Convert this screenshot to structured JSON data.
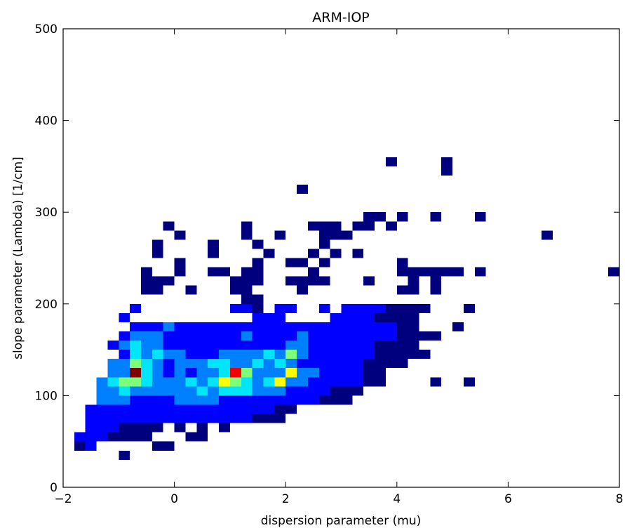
{
  "chart_data": {
    "type": "heatmap",
    "title": "ARM-IOP",
    "xlabel": "dispersion parameter (mu)",
    "ylabel": "slope parameter (Lambda) [1/cm]",
    "xlim": [
      -2,
      8
    ],
    "ylim": [
      0,
      500
    ],
    "xticks": [
      -2,
      0,
      2,
      4,
      6,
      8
    ],
    "yticks": [
      0,
      100,
      200,
      300,
      400,
      500
    ],
    "grid": false,
    "colormap": "jet",
    "bin_size": {
      "x": 0.2,
      "y": 10
    },
    "x": [
      -1.7,
      -1.5,
      -0.9,
      -0.3,
      -0.1,
      0.3,
      0.5,
      -1.7,
      -1.5,
      -1.3,
      -1.1,
      -0.9,
      -0.7,
      -0.5,
      -1.5,
      -1.3,
      -1.1,
      -0.9,
      -0.7,
      -0.5,
      -0.3,
      0.1,
      0.5,
      0.9,
      1.1,
      1.3,
      1.5,
      1.7,
      -1.5,
      -1.3,
      -1.1,
      -0.9,
      -0.7,
      -0.5,
      -0.3,
      -0.1,
      0.1,
      0.3,
      0.5,
      0.7,
      0.9,
      1.1,
      1.3,
      1.5,
      1.7,
      1.9,
      -1.5,
      -1.3,
      -1.1,
      -0.9,
      -0.7,
      -0.5,
      -0.3,
      -0.1,
      0.1,
      0.3,
      0.5,
      0.7,
      0.9,
      1.1,
      1.3,
      1.5,
      1.7,
      1.9,
      2.1,
      -1.3,
      -1.1,
      -0.9,
      -0.7,
      -0.5,
      -0.3,
      -0.1,
      0.1,
      0.3,
      0.5,
      0.7,
      0.9,
      1.1,
      1.3,
      1.5,
      1.7,
      1.9,
      2.1,
      2.3,
      2.5,
      2.7,
      2.9,
      3.1,
      -1.3,
      -1.1,
      -0.9,
      -0.7,
      -0.5,
      -0.3,
      -0.1,
      0.1,
      0.3,
      0.5,
      0.7,
      0.9,
      1.1,
      1.3,
      1.5,
      1.7,
      1.9,
      2.1,
      2.3,
      2.5,
      2.7,
      2.9,
      3.1,
      3.3,
      -1.3,
      -1.1,
      -0.9,
      -0.7,
      -0.5,
      -0.3,
      -0.1,
      0.1,
      0.3,
      0.5,
      0.7,
      0.9,
      1.1,
      1.3,
      1.5,
      1.7,
      1.9,
      2.1,
      2.3,
      2.5,
      2.7,
      2.9,
      3.1,
      3.3,
      3.5,
      3.7,
      4.7,
      5.3,
      -1.1,
      -0.9,
      -0.7,
      -0.5,
      -0.3,
      -0.1,
      0.1,
      0.3,
      0.5,
      0.7,
      0.9,
      1.1,
      1.3,
      1.5,
      1.7,
      1.9,
      2.1,
      2.3,
      2.5,
      2.7,
      2.9,
      3.1,
      3.3,
      3.5,
      3.7,
      -1.1,
      -0.9,
      -0.7,
      -0.5,
      -0.3,
      -0.1,
      0.1,
      0.3,
      0.5,
      0.7,
      0.9,
      1.1,
      1.3,
      1.5,
      1.7,
      1.9,
      2.1,
      2.3,
      2.5,
      2.7,
      2.9,
      3.1,
      3.3,
      3.5,
      3.7,
      3.9,
      4.1,
      -0.9,
      -0.7,
      -0.5,
      -0.3,
      -0.1,
      0.1,
      0.3,
      0.5,
      0.7,
      0.9,
      1.1,
      1.3,
      1.5,
      1.7,
      1.9,
      2.1,
      2.3,
      2.5,
      2.7,
      2.9,
      3.1,
      3.3,
      3.5,
      3.7,
      3.9,
      4.1,
      4.3,
      4.5,
      -1.1,
      -0.9,
      -0.7,
      -0.5,
      -0.3,
      -0.1,
      0.1,
      0.3,
      0.5,
      0.7,
      0.9,
      1.1,
      1.3,
      1.5,
      1.7,
      1.9,
      2.1,
      2.3,
      2.5,
      2.7,
      2.9,
      3.1,
      3.3,
      3.5,
      3.7,
      3.9,
      4.1,
      4.3,
      -0.9,
      -0.7,
      -0.5,
      -0.3,
      -0.1,
      0.1,
      0.3,
      0.5,
      0.7,
      0.9,
      1.1,
      1.3,
      1.5,
      1.7,
      1.9,
      2.1,
      2.3,
      2.5,
      2.7,
      2.9,
      3.1,
      3.3,
      3.5,
      3.7,
      3.9,
      4.1,
      4.3,
      4.5,
      4.7,
      7.9,
      -0.7,
      -0.5,
      -0.3,
      -0.1,
      0.1,
      0.3,
      0.5,
      0.7,
      0.9,
      1.1,
      1.3,
      1.5,
      1.7,
      1.9,
      2.1,
      2.3,
      2.5,
      2.7,
      2.9,
      3.1,
      3.3,
      3.5,
      3.7,
      3.9,
      4.1,
      4.3,
      5.1,
      -0.9,
      1.5,
      1.7,
      1.9,
      2.9,
      3.1,
      3.3,
      3.5,
      3.7,
      3.9,
      4.1,
      4.3,
      -0.7,
      1.1,
      1.3,
      1.5,
      1.9,
      2.1,
      2.7,
      3.1,
      3.3,
      3.5,
      3.7,
      3.9,
      4.1,
      4.3,
      4.5,
      5.3,
      1.3,
      1.5,
      6.7,
      -0.5,
      -0.3,
      0.3,
      1.1,
      1.3,
      2.3,
      4.1,
      4.3,
      4.7,
      -0.5,
      -0.3,
      -0.1,
      1.1,
      1.3,
      1.5,
      2.1,
      2.3,
      2.5,
      2.7,
      3.5,
      4.3,
      4.7,
      -0.5,
      0.1,
      0.7,
      0.9,
      1.3,
      1.5,
      2.5,
      4.1,
      4.3,
      4.5,
      4.7,
      4.9,
      5.1,
      5.5,
      0.1,
      1.5,
      2.1,
      2.3,
      2.7,
      4.1,
      -0.3,
      0.7,
      1.7,
      2.5,
      2.9,
      3.3,
      -0.3,
      0.7,
      1.5,
      2.7,
      0.1,
      1.3,
      1.9,
      2.7,
      2.9,
      3.1,
      -0.1,
      1.3,
      2.5,
      2.7,
      2.9,
      3.3,
      3.5,
      3.9,
      3.5,
      3.7,
      4.1,
      4.7,
      5.5,
      2.3,
      4.9,
      3.9,
      4.9
    ],
    "y": [
      45,
      45,
      35,
      45,
      45,
      55,
      55,
      55,
      55,
      55,
      55,
      55,
      55,
      55,
      65,
      65,
      65,
      65,
      65,
      65,
      65,
      65,
      65,
      65,
      75,
      75,
      75,
      75,
      75,
      75,
      75,
      75,
      75,
      75,
      75,
      75,
      75,
      75,
      75,
      75,
      75,
      75,
      75,
      75,
      75,
      75,
      85,
      85,
      85,
      85,
      85,
      85,
      85,
      85,
      85,
      85,
      85,
      85,
      85,
      85,
      85,
      85,
      85,
      85,
      85,
      95,
      95,
      95,
      95,
      95,
      95,
      95,
      95,
      95,
      95,
      95,
      95,
      95,
      95,
      95,
      95,
      95,
      95,
      95,
      95,
      95,
      95,
      95,
      105,
      105,
      105,
      105,
      105,
      105,
      105,
      105,
      105,
      105,
      105,
      105,
      105,
      105,
      105,
      105,
      105,
      105,
      105,
      105,
      105,
      105,
      105,
      105,
      115,
      115,
      115,
      115,
      115,
      115,
      115,
      115,
      115,
      115,
      115,
      115,
      115,
      115,
      115,
      115,
      115,
      115,
      115,
      115,
      115,
      115,
      115,
      115,
      115,
      115,
      115,
      115,
      125,
      125,
      125,
      125,
      125,
      125,
      125,
      125,
      125,
      125,
      125,
      125,
      125,
      125,
      125,
      125,
      125,
      125,
      125,
      125,
      125,
      125,
      125,
      125,
      125,
      135,
      135,
      135,
      135,
      135,
      135,
      135,
      135,
      135,
      135,
      135,
      135,
      135,
      135,
      135,
      135,
      135,
      135,
      135,
      135,
      135,
      135,
      135,
      135,
      135,
      135,
      135,
      145,
      145,
      145,
      145,
      145,
      145,
      145,
      145,
      145,
      145,
      145,
      145,
      145,
      145,
      145,
      145,
      145,
      145,
      145,
      145,
      145,
      145,
      145,
      145,
      145,
      145,
      145,
      145,
      155,
      155,
      155,
      155,
      155,
      155,
      155,
      155,
      155,
      155,
      155,
      155,
      155,
      155,
      155,
      155,
      155,
      155,
      155,
      155,
      155,
      155,
      155,
      155,
      155,
      155,
      155,
      155,
      165,
      165,
      165,
      165,
      165,
      165,
      165,
      165,
      165,
      165,
      165,
      165,
      165,
      165,
      165,
      165,
      165,
      165,
      165,
      165,
      165,
      165,
      165,
      165,
      165,
      165,
      165,
      165,
      165,
      235,
      175,
      175,
      175,
      175,
      175,
      175,
      175,
      175,
      175,
      175,
      175,
      175,
      175,
      175,
      175,
      175,
      175,
      175,
      175,
      175,
      175,
      175,
      175,
      175,
      175,
      175,
      175,
      185,
      185,
      185,
      185,
      185,
      185,
      185,
      185,
      185,
      185,
      185,
      185,
      195,
      195,
      195,
      195,
      195,
      195,
      195,
      195,
      195,
      195,
      195,
      195,
      195,
      195,
      195,
      195,
      205,
      205,
      275,
      215,
      215,
      215,
      215,
      215,
      215,
      215,
      215,
      215,
      225,
      225,
      225,
      225,
      225,
      225,
      225,
      225,
      225,
      225,
      225,
      225,
      225,
      235,
      235,
      235,
      235,
      235,
      235,
      235,
      235,
      235,
      235,
      235,
      235,
      235,
      235,
      245,
      245,
      245,
      245,
      245,
      245,
      255,
      255,
      255,
      255,
      255,
      255,
      265,
      265,
      265,
      265,
      275,
      275,
      275,
      275,
      275,
      275,
      285,
      285,
      285,
      285,
      285,
      285,
      285,
      285,
      295,
      295,
      295,
      295,
      295,
      325,
      345,
      355,
      355
    ],
    "counts": [
      1,
      2,
      1,
      1,
      1,
      1,
      1,
      2,
      2,
      2,
      1,
      1,
      1,
      1,
      2,
      3,
      2,
      1,
      1,
      1,
      1,
      1,
      1,
      1,
      1,
      1,
      1,
      1,
      2,
      2,
      3,
      2,
      2,
      2,
      2,
      2,
      2,
      2,
      2,
      2,
      2,
      2,
      2,
      1,
      1,
      1,
      3,
      3,
      3,
      3,
      3,
      3,
      2,
      2,
      2,
      2,
      2,
      2,
      2,
      2,
      2,
      2,
      2,
      1,
      1,
      4,
      4,
      4,
      3,
      3,
      3,
      3,
      4,
      4,
      4,
      4,
      3,
      3,
      3,
      3,
      2,
      2,
      2,
      2,
      2,
      1,
      1,
      1,
      4,
      5,
      6,
      5,
      4,
      5,
      4,
      5,
      5,
      6,
      5,
      6,
      6,
      6,
      5,
      4,
      4,
      3,
      3,
      3,
      2,
      1,
      1,
      1,
      4,
      6,
      9,
      8,
      6,
      5,
      4,
      5,
      6,
      5,
      7,
      11,
      9,
      6,
      5,
      6,
      10,
      4,
      4,
      3,
      3,
      2,
      2,
      2,
      1,
      1,
      1,
      1,
      4,
      5,
      16,
      6,
      5,
      3,
      4,
      3,
      4,
      5,
      6,
      14,
      9,
      5,
      5,
      4,
      11,
      4,
      4,
      3,
      3,
      2,
      2,
      1,
      1,
      4,
      5,
      9,
      6,
      4,
      3,
      4,
      4,
      5,
      6,
      6,
      4,
      5,
      7,
      5,
      6,
      4,
      3,
      3,
      2,
      2,
      2,
      2,
      1,
      1,
      1,
      1,
      3,
      6,
      5,
      6,
      4,
      4,
      3,
      3,
      3,
      4,
      4,
      4,
      4,
      6,
      5,
      9,
      4,
      3,
      3,
      3,
      2,
      2,
      2,
      1,
      1,
      1,
      1,
      1,
      2,
      4,
      7,
      4,
      4,
      3,
      3,
      3,
      2,
      3,
      3,
      3,
      3,
      3,
      3,
      3,
      5,
      4,
      3,
      3,
      2,
      2,
      2,
      2,
      1,
      1,
      1,
      1,
      3,
      4,
      4,
      4,
      3,
      3,
      2,
      3,
      3,
      3,
      3,
      4,
      3,
      3,
      3,
      3,
      4,
      3,
      3,
      3,
      2,
      2,
      2,
      2,
      2,
      1,
      1,
      1,
      1,
      1,
      2,
      3,
      3,
      4,
      3,
      3,
      2,
      3,
      2,
      3,
      3,
      3,
      3,
      3,
      3,
      3,
      3,
      3,
      3,
      3,
      2,
      2,
      2,
      2,
      1,
      1,
      1,
      3,
      2,
      2,
      2,
      2,
      2,
      2,
      2,
      1,
      1,
      1,
      1,
      3,
      2,
      2,
      1,
      2,
      2,
      2,
      2,
      2,
      2,
      2,
      1,
      1,
      1,
      1,
      1,
      1,
      1,
      1,
      1,
      1,
      1,
      1,
      1,
      1,
      1,
      1,
      1,
      1,
      1,
      1,
      1,
      1,
      1,
      1,
      1,
      1,
      1,
      1,
      1,
      1,
      1,
      1,
      1,
      1,
      1,
      1,
      1,
      1,
      1,
      1,
      1,
      1,
      1,
      1,
      1,
      1,
      1,
      1,
      1,
      1,
      1,
      1,
      1,
      1,
      1,
      1,
      1,
      1,
      1,
      1,
      1,
      1,
      1,
      1,
      1,
      1,
      1,
      1,
      1,
      1,
      1,
      1,
      1,
      1,
      1,
      1,
      1,
      1,
      1,
      1,
      1,
      1,
      1
    ],
    "color_scale": [
      "#00007f",
      "#0000ff",
      "#0080ff",
      "#00e5f8",
      "#7dff7a",
      "#ffff00",
      "#ff9400",
      "#f00000",
      "#7f0000"
    ]
  }
}
